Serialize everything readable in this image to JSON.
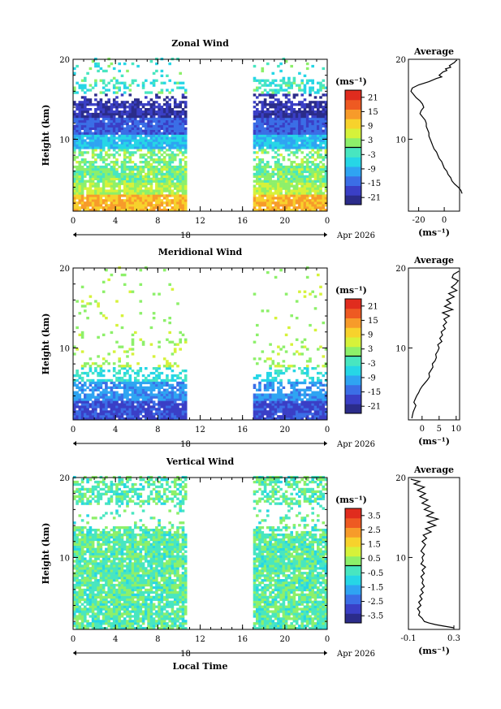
{
  "figure": {
    "xlabel": "Local Time",
    "date_label": "Apr 2026",
    "day_label": "18"
  },
  "chart_data": [
    {
      "type": "heatmap",
      "title": "Zonal Wind",
      "ylabel": "Height (km)",
      "xlim": [
        0,
        24
      ],
      "ylim": [
        1,
        20
      ],
      "x_ticks": [
        "0",
        "4",
        "8",
        "12",
        "16",
        "20",
        "0"
      ],
      "y_ticks": [
        "10",
        "20"
      ],
      "colorbar": {
        "unit": "(ms⁻¹)",
        "ticks": [
          "21",
          "15",
          "9",
          "3",
          "-3",
          "-9",
          "-15",
          "-21"
        ],
        "range": [
          -24,
          24
        ]
      },
      "data_gaps": [
        [
          10.6,
          16.9
        ]
      ],
      "pattern": "zonal",
      "profile": {
        "title": "Average",
        "xlabel": "(ms⁻¹)",
        "x_ticks": [
          "-20",
          "0"
        ],
        "y_ticks": [
          "10",
          "20"
        ],
        "xlim": [
          -28,
          12
        ],
        "points": [
          [
            14,
            3.2
          ],
          [
            13,
            3.6
          ],
          [
            11,
            4.0
          ],
          [
            8,
            4.4
          ],
          [
            6,
            4.8
          ],
          [
            5,
            5.2
          ],
          [
            3,
            5.6
          ],
          [
            2,
            6.0
          ],
          [
            0,
            6.4
          ],
          [
            -1,
            6.8
          ],
          [
            -2,
            7.2
          ],
          [
            -4,
            7.6
          ],
          [
            -5,
            8.0
          ],
          [
            -6,
            8.4
          ],
          [
            -8,
            8.8
          ],
          [
            -9,
            9.2
          ],
          [
            -10,
            9.6
          ],
          [
            -11,
            10.0
          ],
          [
            -12,
            10.4
          ],
          [
            -12,
            10.8
          ],
          [
            -13,
            11.2
          ],
          [
            -14,
            11.6
          ],
          [
            -14,
            12.0
          ],
          [
            -15,
            12.4
          ],
          [
            -17,
            12.8
          ],
          [
            -19,
            13.2
          ],
          [
            -18,
            13.6
          ],
          [
            -16,
            14.0
          ],
          [
            -17,
            14.4
          ],
          [
            -19,
            14.8
          ],
          [
            -22,
            15.2
          ],
          [
            -24,
            15.6
          ],
          [
            -26,
            16.0
          ],
          [
            -25,
            16.4
          ],
          [
            -20,
            16.8
          ],
          [
            -12,
            17.2
          ],
          [
            -6,
            17.6
          ],
          [
            -2,
            17.8
          ],
          [
            -4,
            18.0
          ],
          [
            -1,
            18.4
          ],
          [
            2,
            18.6
          ],
          [
            1,
            18.8
          ],
          [
            5,
            19.0
          ],
          [
            4,
            19.2
          ],
          [
            6,
            19.4
          ],
          [
            8,
            19.6
          ],
          [
            9,
            19.8
          ],
          [
            10,
            19.9
          ]
        ]
      }
    },
    {
      "type": "heatmap",
      "title": "Meridional Wind",
      "ylabel": "Height (km)",
      "xlim": [
        0,
        24
      ],
      "ylim": [
        1,
        20
      ],
      "x_ticks": [
        "0",
        "4",
        "8",
        "12",
        "16",
        "20",
        "0"
      ],
      "y_ticks": [
        "10",
        "20"
      ],
      "colorbar": {
        "unit": "(ms⁻¹)",
        "ticks": [
          "21",
          "15",
          "9",
          "3",
          "-3",
          "-9",
          "-15",
          "-21"
        ],
        "range": [
          -24,
          24
        ]
      },
      "data_gaps": [
        [
          10.6,
          16.9
        ]
      ],
      "pattern": "meridional",
      "profile": {
        "title": "Average",
        "xlabel": "(ms⁻¹)",
        "x_ticks": [
          "0",
          "5",
          "10"
        ],
        "y_ticks": [
          "10",
          "20"
        ],
        "xlim": [
          -4,
          11
        ],
        "points": [
          [
            -3.0,
            1.2
          ],
          [
            -2.8,
            1.6
          ],
          [
            -2.6,
            2.0
          ],
          [
            -2.2,
            2.4
          ],
          [
            -1.8,
            2.8
          ],
          [
            -2.4,
            3.2
          ],
          [
            -2.0,
            3.6
          ],
          [
            -1.6,
            4.0
          ],
          [
            -1.0,
            4.4
          ],
          [
            -0.6,
            4.8
          ],
          [
            0.0,
            5.2
          ],
          [
            0.8,
            5.6
          ],
          [
            1.6,
            6.0
          ],
          [
            2.2,
            6.4
          ],
          [
            2.0,
            6.8
          ],
          [
            2.6,
            7.2
          ],
          [
            3.2,
            7.6
          ],
          [
            3.0,
            8.0
          ],
          [
            3.8,
            8.4
          ],
          [
            4.2,
            8.8
          ],
          [
            4.0,
            9.2
          ],
          [
            4.6,
            9.6
          ],
          [
            5.0,
            10.0
          ],
          [
            4.6,
            10.4
          ],
          [
            5.8,
            10.8
          ],
          [
            5.2,
            11.2
          ],
          [
            6.0,
            11.6
          ],
          [
            5.6,
            12.0
          ],
          [
            6.8,
            12.4
          ],
          [
            6.2,
            12.8
          ],
          [
            7.2,
            13.2
          ],
          [
            6.4,
            13.6
          ],
          [
            8.0,
            14.0
          ],
          [
            6.0,
            14.4
          ],
          [
            9.0,
            14.8
          ],
          [
            6.6,
            15.2
          ],
          [
            8.4,
            15.6
          ],
          [
            7.2,
            16.0
          ],
          [
            9.4,
            16.4
          ],
          [
            7.8,
            16.8
          ],
          [
            10.2,
            17.2
          ],
          [
            8.6,
            17.6
          ],
          [
            9.8,
            18.0
          ],
          [
            10.6,
            18.4
          ],
          [
            8.8,
            18.8
          ],
          [
            9.2,
            19.2
          ],
          [
            10.8,
            19.6
          ]
        ]
      }
    },
    {
      "type": "heatmap",
      "title": "Vertical Wind",
      "ylabel": "Height (km)",
      "xlim": [
        0,
        24
      ],
      "ylim": [
        1,
        20
      ],
      "x_ticks": [
        "0",
        "4",
        "8",
        "12",
        "16",
        "20",
        "0"
      ],
      "y_ticks": [
        "10",
        "20"
      ],
      "colorbar": {
        "unit": "(ms⁻¹)",
        "ticks": [
          "3.5",
          "2.5",
          "1.5",
          "0.5",
          "-0.5",
          "-1.5",
          "-2.5",
          "-3.5"
        ],
        "range": [
          -4,
          4
        ]
      },
      "data_gaps": [
        [
          10.6,
          16.9
        ]
      ],
      "pattern": "vertical",
      "profile": {
        "title": "Average",
        "xlabel": "(ms⁻¹)",
        "x_ticks": [
          "-0.1",
          "0.3"
        ],
        "y_ticks": [
          "10",
          "20"
        ],
        "xlim": [
          -0.1,
          0.35
        ],
        "points": [
          [
            0.3,
            1.2
          ],
          [
            0.22,
            1.4
          ],
          [
            0.14,
            1.6
          ],
          [
            0.08,
            1.8
          ],
          [
            0.04,
            2.0
          ],
          [
            0.02,
            2.4
          ],
          [
            -0.01,
            2.8
          ],
          [
            0.0,
            3.2
          ],
          [
            -0.02,
            3.6
          ],
          [
            0.01,
            4.0
          ],
          [
            -0.01,
            4.4
          ],
          [
            0.02,
            4.8
          ],
          [
            0.0,
            5.2
          ],
          [
            0.03,
            5.6
          ],
          [
            0.01,
            6.0
          ],
          [
            0.04,
            6.4
          ],
          [
            0.02,
            6.8
          ],
          [
            0.03,
            7.2
          ],
          [
            0.01,
            7.6
          ],
          [
            0.04,
            8.0
          ],
          [
            0.02,
            8.4
          ],
          [
            0.05,
            8.8
          ],
          [
            0.01,
            9.2
          ],
          [
            0.03,
            9.6
          ],
          [
            0.02,
            10.0
          ],
          [
            0.04,
            10.4
          ],
          [
            0.01,
            10.8
          ],
          [
            0.03,
            11.2
          ],
          [
            0.05,
            11.6
          ],
          [
            0.02,
            12.0
          ],
          [
            0.06,
            12.4
          ],
          [
            0.03,
            12.8
          ],
          [
            0.1,
            13.2
          ],
          [
            0.05,
            13.6
          ],
          [
            0.14,
            14.0
          ],
          [
            0.07,
            14.4
          ],
          [
            0.16,
            14.8
          ],
          [
            0.06,
            15.2
          ],
          [
            0.12,
            15.6
          ],
          [
            0.04,
            16.0
          ],
          [
            0.09,
            16.4
          ],
          [
            0.02,
            16.8
          ],
          [
            0.07,
            17.2
          ],
          [
            0.0,
            17.6
          ],
          [
            0.05,
            18.0
          ],
          [
            -0.02,
            18.4
          ],
          [
            0.04,
            18.8
          ],
          [
            -0.05,
            19.2
          ],
          [
            0.0,
            19.5
          ],
          [
            -0.08,
            19.8
          ]
        ]
      }
    }
  ]
}
